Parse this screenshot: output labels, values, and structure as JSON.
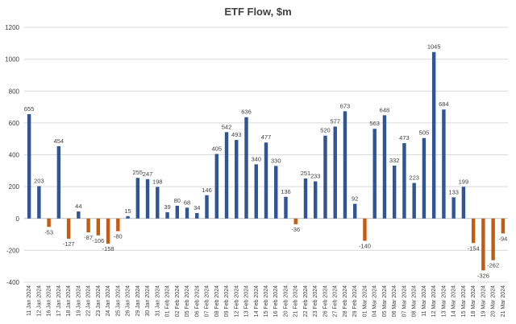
{
  "chart_data": {
    "type": "bar",
    "title": "ETF Flow, $m",
    "xlabel": "",
    "ylabel": "",
    "ylim": [
      -400,
      1200
    ],
    "yticks": [
      1200,
      1000,
      800,
      600,
      400,
      200,
      0,
      -200,
      -400
    ],
    "grid": true,
    "legend": "none",
    "colors": {
      "positive": "#2F5597",
      "negative": "#C55A11"
    },
    "categories": [
      "11 Jan 2024",
      "12 Jan 2024",
      "16 Jan 2024",
      "17 Jan 2024",
      "18 Jan 2024",
      "19 Jan 2024",
      "22 Jan 2024",
      "23 Jan 2024",
      "24 Jan 2024",
      "25 Jan 2024",
      "26 Jan 2024",
      "29 Jan 2024",
      "30 Jan 2024",
      "31 Jan 2024",
      "01 Feb 2024",
      "02 Feb 2024",
      "05 Feb 2024",
      "06 Feb 2024",
      "07 Feb 2024",
      "08 Feb 2024",
      "09 Feb 2024",
      "12 Feb 2024",
      "13 Feb 2024",
      "14 Feb 2024",
      "15 Feb 2024",
      "16 Feb 2024",
      "20 Feb 2024",
      "21 Feb 2024",
      "22 Feb 2024",
      "23 Feb 2024",
      "26 Feb 2024",
      "27 Feb 2024",
      "28 Feb 2024",
      "29 Feb 2024",
      "01 Mar 2024",
      "04 Mar 2024",
      "05 Mar 2024",
      "06 Mar 2024",
      "07 Mar 2024",
      "08 Mar 2024",
      "11 Mar 2024",
      "12 Mar 2024",
      "13 Mar 2024",
      "14 Mar 2024",
      "15 Mar 2024",
      "18 Mar 2024",
      "19 Mar 2024",
      "20 Mar 2024",
      "21 Mar 2024"
    ],
    "values": [
      655,
      203,
      -53,
      454,
      -127,
      44,
      -87,
      -106,
      -158,
      -80,
      15,
      255,
      247,
      198,
      39,
      80,
      68,
      34,
      146,
      405,
      542,
      493,
      636,
      340,
      477,
      330,
      136,
      -36,
      251,
      233,
      520,
      577,
      673,
      92,
      -140,
      563,
      648,
      332,
      473,
      223,
      505,
      1045,
      684,
      133,
      199,
      -154,
      -326,
      -262,
      -94
    ]
  }
}
